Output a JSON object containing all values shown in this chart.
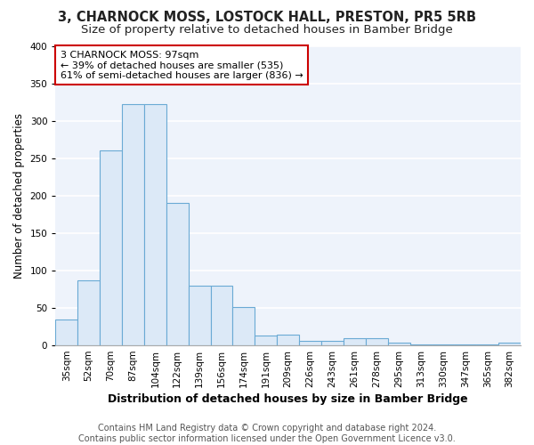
{
  "title": "3, CHARNOCK MOSS, LOSTOCK HALL, PRESTON, PR5 5RB",
  "subtitle": "Size of property relative to detached houses in Bamber Bridge",
  "xlabel": "Distribution of detached houses by size in Bamber Bridge",
  "ylabel": "Number of detached properties",
  "categories": [
    "35sqm",
    "52sqm",
    "70sqm",
    "87sqm",
    "104sqm",
    "122sqm",
    "139sqm",
    "156sqm",
    "174sqm",
    "191sqm",
    "209sqm",
    "226sqm",
    "243sqm",
    "261sqm",
    "278sqm",
    "295sqm",
    "313sqm",
    "330sqm",
    "347sqm",
    "365sqm",
    "382sqm"
  ],
  "values": [
    35,
    87,
    260,
    322,
    322,
    190,
    80,
    80,
    51,
    13,
    14,
    6,
    6,
    9,
    9,
    4,
    1,
    1,
    1,
    1,
    4
  ],
  "bar_color": "#dce9f7",
  "bar_edge_color": "#6aaad4",
  "annotation_text": "3 CHARNOCK MOSS: 97sqm\n← 39% of detached houses are smaller (535)\n61% of semi-detached houses are larger (836) →",
  "annotation_box_color": "#ffffff",
  "annotation_box_edge_color": "#cc0000",
  "ylim": [
    0,
    400
  ],
  "yticks": [
    0,
    50,
    100,
    150,
    200,
    250,
    300,
    350,
    400
  ],
  "footer_line1": "Contains HM Land Registry data © Crown copyright and database right 2024.",
  "footer_line2": "Contains public sector information licensed under the Open Government Licence v3.0.",
  "background_color": "#eef3fb",
  "grid_color": "#ffffff",
  "title_fontsize": 10.5,
  "subtitle_fontsize": 9.5,
  "xlabel_fontsize": 9,
  "ylabel_fontsize": 8.5,
  "tick_fontsize": 7.5,
  "annotation_fontsize": 8,
  "footer_fontsize": 7
}
